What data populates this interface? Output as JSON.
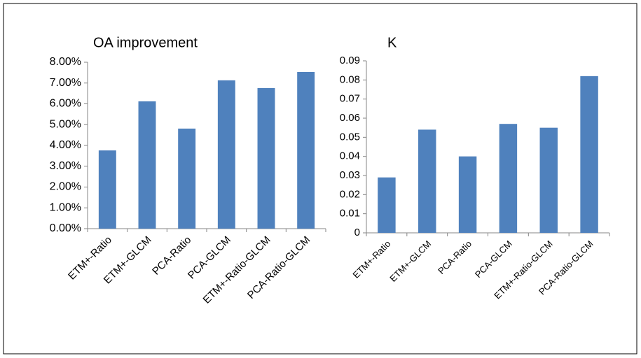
{
  "chart_data": [
    {
      "type": "bar",
      "title": "OA improvement",
      "categories": [
        "ETM+-Ratio",
        "ETM+-GLCM",
        "PCA-Ratio",
        "PCA-GLCM",
        "ETM+-Ratio-GLCM",
        "PCA-Ratio-GLCM"
      ],
      "values": [
        3.76,
        6.12,
        4.81,
        7.13,
        6.76,
        7.53
      ],
      "color": "#4f81bd",
      "ylim": [
        0,
        8
      ],
      "yticks": [
        {
          "value": 0,
          "label": "0.00%"
        },
        {
          "value": 1,
          "label": "1.00%"
        },
        {
          "value": 2,
          "label": "2.00%"
        },
        {
          "value": 3,
          "label": "3.00%"
        },
        {
          "value": 4,
          "label": "4.00%"
        },
        {
          "value": 5,
          "label": "5.00%"
        },
        {
          "value": 6,
          "label": "6.00%"
        },
        {
          "value": 7,
          "label": "7.00%"
        },
        {
          "value": 8,
          "label": "8.00%"
        }
      ],
      "grid": false
    },
    {
      "type": "bar",
      "title": "K",
      "categories": [
        "ETM+-Ratio",
        "ETM+-GLCM",
        "PCA-Ratio",
        "PCA-GLCM",
        "ETM+-Ratio-GLCM",
        "PCA-Ratio-GLCM"
      ],
      "values": [
        0.029,
        0.054,
        0.04,
        0.057,
        0.055,
        0.082
      ],
      "color": "#4f81bd",
      "ylim": [
        0,
        0.09
      ],
      "yticks": [
        0,
        0.01,
        0.02,
        0.03,
        0.04,
        0.05,
        0.06,
        0.07,
        0.08,
        0.09
      ],
      "grid": false
    }
  ]
}
